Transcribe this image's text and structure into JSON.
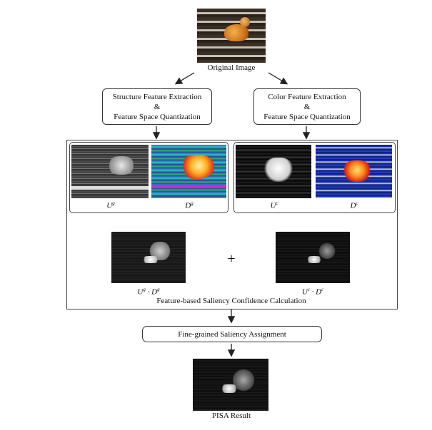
{
  "original_label": "Original Image",
  "structure_box": {
    "line1": "Structure Feature Extraction",
    "line2": "&",
    "line3": "Feature Space Quantization"
  },
  "color_box": {
    "line1": "Color Feature Extraction",
    "line2": "&",
    "line3": "Feature Space Quantization"
  },
  "maps": {
    "ug": {
      "base": "U",
      "sup": "g"
    },
    "dg": {
      "base": "D",
      "sup": "g"
    },
    "uc": {
      "base": "U",
      "sup": "c"
    },
    "dc": {
      "base": "D",
      "sup": "c"
    }
  },
  "products": {
    "g": {
      "a": "U",
      "asup": "g",
      "dot": " · ",
      "b": "D",
      "bsup": "g"
    },
    "c": {
      "a": "U",
      "asup": "c",
      "dot": " · ",
      "b": "D",
      "bsup": "c"
    }
  },
  "plus": "+",
  "confidence_label": "Feature-based Saliency Confidence Calculation",
  "assignment_label": "Fine-grained Saliency Assignment",
  "result_label": "PISA Result"
}
